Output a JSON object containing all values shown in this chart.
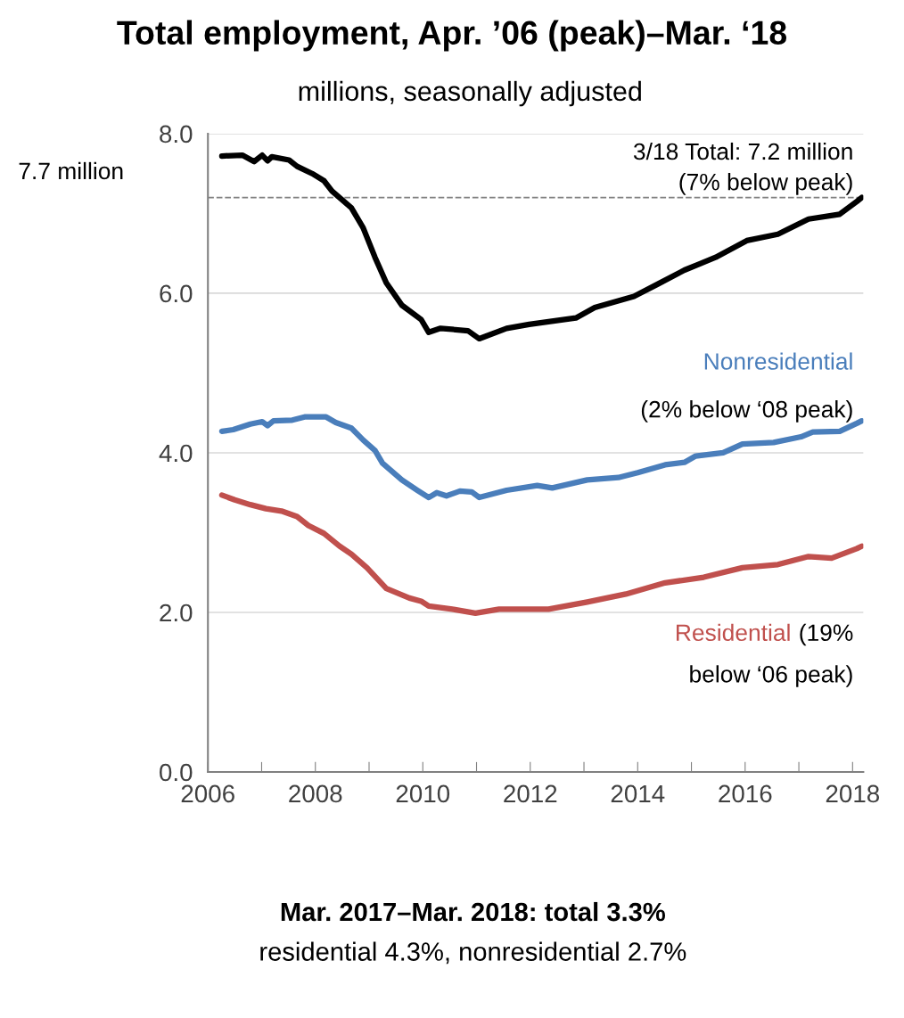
{
  "chart_data": {
    "type": "line",
    "title": "Total employment, Apr. ’06 (peak)–Mar. ‘18",
    "subtitle": "millions, seasonally adjusted",
    "series": [
      {
        "color": "#000000",
        "x": [
          2006.26,
          2006.64,
          2006.86,
          2007.01,
          2007.11,
          2007.19,
          2007.51,
          2007.66,
          2007.94,
          2008.16,
          2008.31,
          2008.67,
          2008.89,
          2009.11,
          2009.32,
          2009.61,
          2009.97,
          2010.11,
          2010.33,
          2010.84,
          2011.05,
          2011.56,
          2011.98,
          2012.85,
          2013.2,
          2013.93,
          2014.36,
          2014.87,
          2015.16,
          2015.45,
          2016.03,
          2016.61,
          2017.18,
          2017.76,
          2018.08,
          2018.17
        ],
        "values": [
          7.72,
          7.73,
          7.65,
          7.73,
          7.66,
          7.71,
          7.67,
          7.59,
          7.5,
          7.41,
          7.28,
          7.07,
          6.82,
          6.45,
          6.13,
          5.85,
          5.67,
          5.51,
          5.56,
          5.53,
          5.43,
          5.56,
          5.61,
          5.69,
          5.82,
          5.96,
          6.11,
          6.29,
          6.37,
          6.45,
          6.66,
          6.74,
          6.93,
          6.99,
          7.15,
          7.2
        ]
      },
      {
        "name": "Nonresidential",
        "color": "#4a7ebb",
        "x": [
          2006.26,
          2006.47,
          2006.79,
          2007.01,
          2007.11,
          2007.22,
          2007.57,
          2007.8,
          2008.2,
          2008.38,
          2008.67,
          2008.89,
          2009.11,
          2009.25,
          2009.61,
          2009.9,
          2010.11,
          2010.26,
          2010.44,
          2010.69,
          2010.91,
          2011.05,
          2011.56,
          2012.13,
          2012.41,
          2013.06,
          2013.64,
          2014.0,
          2014.51,
          2014.87,
          2015.08,
          2015.59,
          2015.95,
          2016.53,
          2017.04,
          2017.26,
          2017.76,
          2018.08,
          2018.17
        ],
        "values": [
          4.27,
          4.29,
          4.36,
          4.39,
          4.34,
          4.4,
          4.41,
          4.45,
          4.45,
          4.38,
          4.31,
          4.16,
          4.03,
          3.87,
          3.66,
          3.53,
          3.44,
          3.5,
          3.46,
          3.52,
          3.51,
          3.44,
          3.53,
          3.59,
          3.56,
          3.66,
          3.69,
          3.75,
          3.85,
          3.88,
          3.96,
          4.0,
          4.11,
          4.13,
          4.2,
          4.26,
          4.27,
          4.37,
          4.4
        ]
      },
      {
        "name": "Residential",
        "color": "#c0504d",
        "x": [
          2006.26,
          2006.5,
          2006.79,
          2007.08,
          2007.37,
          2007.66,
          2007.87,
          2008.16,
          2008.45,
          2008.67,
          2008.96,
          2009.32,
          2009.75,
          2009.97,
          2010.11,
          2010.55,
          2010.98,
          2011.42,
          2012.13,
          2012.34,
          2013.06,
          2013.78,
          2014.51,
          2015.23,
          2015.95,
          2016.61,
          2017.18,
          2017.61,
          2018.08,
          2018.17
        ],
        "values": [
          3.47,
          3.41,
          3.35,
          3.3,
          3.27,
          3.2,
          3.09,
          2.99,
          2.83,
          2.73,
          2.56,
          2.3,
          2.18,
          2.14,
          2.08,
          2.04,
          1.99,
          2.04,
          2.04,
          2.04,
          2.13,
          2.23,
          2.37,
          2.44,
          2.56,
          2.6,
          2.7,
          2.68,
          2.8,
          2.83
        ]
      }
    ],
    "xlim": [
      2006,
      2018.2
    ],
    "xticks": [
      2006,
      {
        "value": 2007,
        "label": null
      },
      2008,
      {
        "value": 2009,
        "label": null
      },
      2010,
      {
        "value": 2011,
        "label": null
      },
      2012,
      {
        "value": 2013,
        "label": null
      },
      2014,
      {
        "value": 2015,
        "label": null
      },
      2016,
      {
        "value": 2017,
        "label": null
      },
      2018
    ],
    "ylim": [
      0,
      8
    ],
    "yticks": [
      {
        "value": 0,
        "label": "0.0"
      },
      {
        "value": 2,
        "label": "2.0"
      },
      {
        "value": 4,
        "label": "4.0"
      },
      {
        "value": 6,
        "label": "6.0"
      },
      {
        "value": 8,
        "label": "8.0"
      }
    ],
    "grid": "y",
    "legend": false,
    "line_style": "solid",
    "marker": "none",
    "ref_lines": [
      {
        "axis": "y",
        "value": 7.2,
        "color": "#808080",
        "line_style": "dashed"
      }
    ],
    "annotations": [
      "7.7 million",
      "3/18 Total: 7.2 million\n(7% below peak)",
      "(2% below ‘08 peak)",
      "(19%",
      "below ‘06 peak)",
      "Mar. 2017–Mar. 2018: total 3.3%",
      "residential 4.3%, nonresidential 2.7%"
    ]
  }
}
